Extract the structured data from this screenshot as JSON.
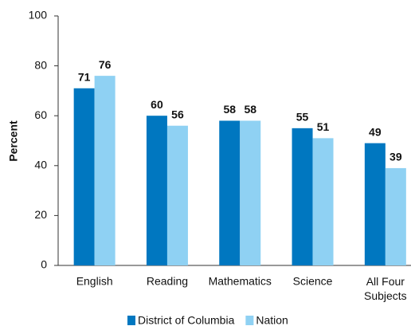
{
  "chart_data": {
    "type": "bar",
    "y_label": "Percent",
    "categories": [
      "English",
      "Reading",
      "Mathematics",
      "Science",
      "All Four Subjects"
    ],
    "series": [
      {
        "name": "District of Columbia",
        "color": "#0077c0",
        "values": [
          71,
          60,
          58,
          55,
          49
        ]
      },
      {
        "name": "Nation",
        "color": "#8fd1f3",
        "values": [
          76,
          56,
          58,
          51,
          39
        ]
      }
    ],
    "ylim": [
      0,
      100
    ],
    "yticks": [
      0,
      20,
      40,
      60,
      80,
      100
    ],
    "grid": false,
    "legend": "bottom"
  }
}
